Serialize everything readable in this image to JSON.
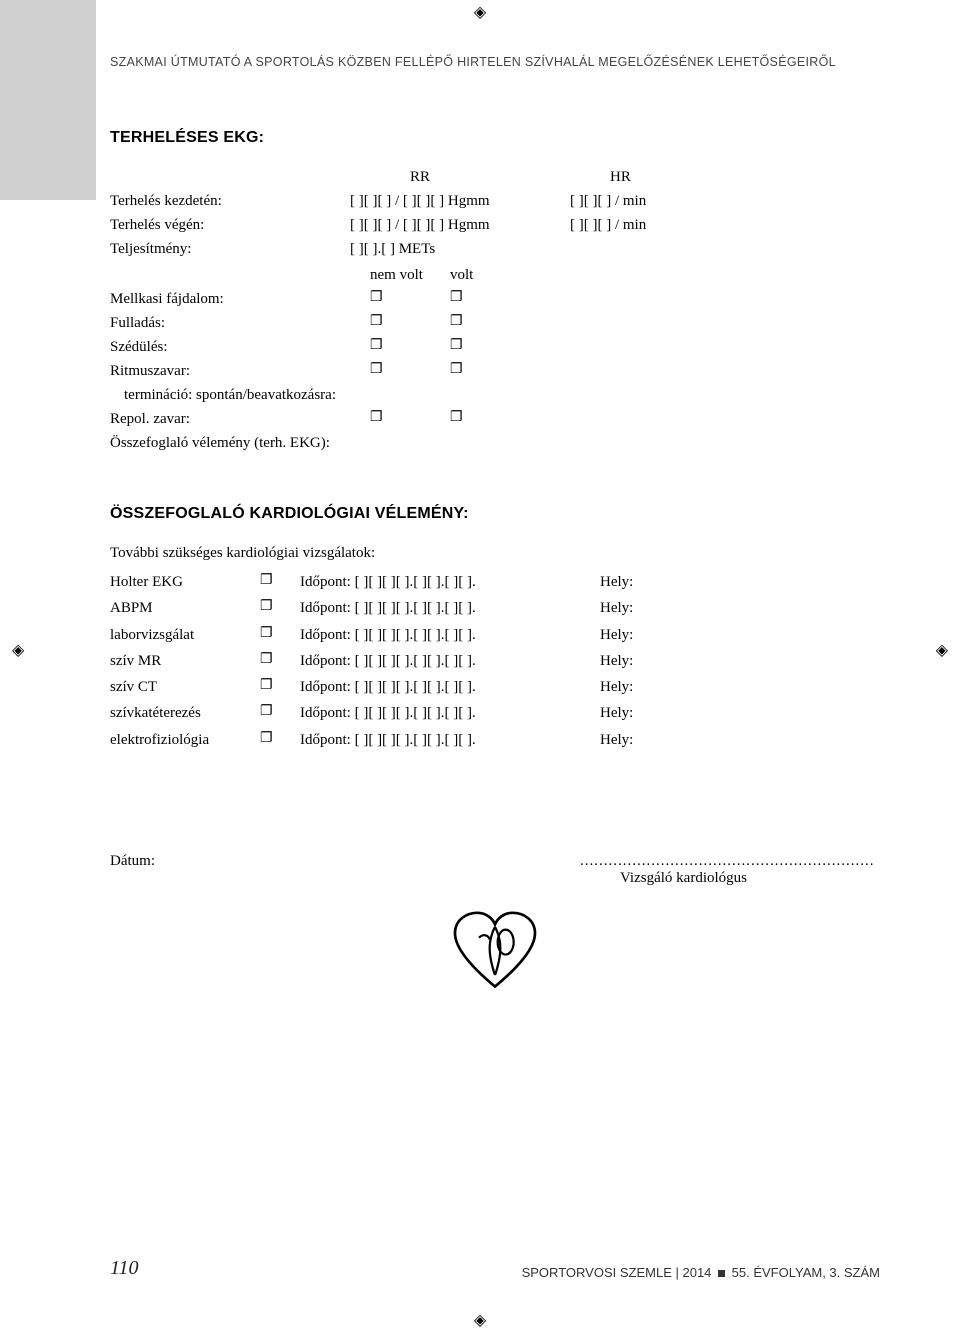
{
  "header": "SZAKMAI ÚTMUTATÓ A SPORTOLÁS KÖZBEN FELLÉPŐ HIRTELEN SZÍVHALÁL MEGELŐZÉSÉNEK LEHETŐSÉGEIRŐL",
  "section1": {
    "title": "TERHELÉSES EKG:",
    "col_rr": "RR",
    "col_hr": "HR",
    "rows": {
      "start_label": "Terhelés kezdetén:",
      "start_rr": "[  ][  ][  ] / [  ][  ][  ] Hgmm",
      "start_hr": "[  ][  ][  ] / min",
      "end_label": "Terhelés végén:",
      "end_rr": "[  ][  ][  ] / [  ][  ][  ] Hgmm",
      "end_hr": "[  ][  ][  ] / min",
      "perf_label": "Teljesítmény:",
      "perf_val": "[  ][  ].[  ] METs"
    },
    "sym_hdr_no": "nem volt",
    "sym_hdr_yes": "volt",
    "symptoms": [
      "Mellkasi fájdalom:",
      "Fulladás:",
      "Szédülés:",
      "Ritmuszavar:"
    ],
    "termination": "termináció: spontán/beavatkozásra:",
    "repol": "Repol. zavar:",
    "summary": "Összefoglaló vélemény (terh. EKG):"
  },
  "section2": {
    "title": "ÖSSZEFOGLALÓ KARDIOLÓGIAI VÉLEMÉNY:",
    "intro": "További szükséges kardiológiai vizsgálatok:",
    "time_pattern": "Időpont: [  ][  ][  ][  ].[  ][  ].[  ][  ].",
    "loc_label": "Hely:",
    "exams": [
      "Holter EKG",
      "ABPM",
      "laborvizsgálat",
      "szív MR",
      "szív CT",
      "szívkatéterezés",
      "elektrofiziológia"
    ]
  },
  "date_label": "Dátum:",
  "sig_dots": "..............................................................",
  "sig_label": "Vizsgáló kardiológus",
  "footer": {
    "page": "110",
    "journal": "SPORTORVOSI SZEMLE",
    "sep": " | ",
    "year": "2014",
    "issue": "55. ÉVFOLYAM, 3. SZÁM"
  },
  "checkbox_glyph": "❐"
}
